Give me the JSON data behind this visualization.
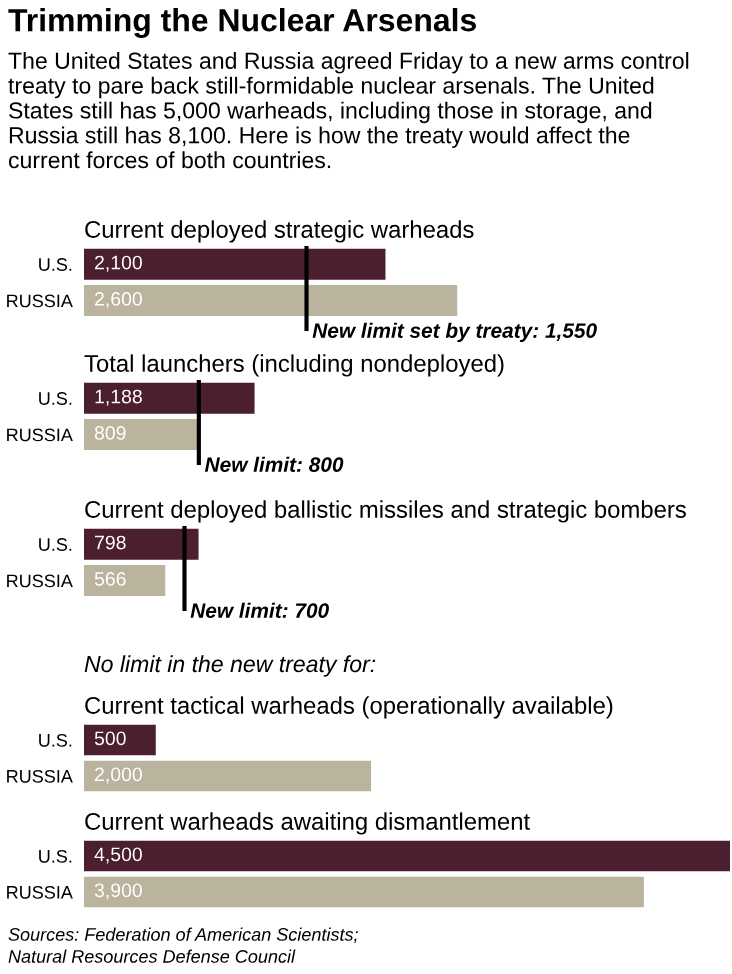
{
  "chart_data": [
    {
      "type": "other",
      "title": "Trimming the Nuclear Arsenals",
      "subtitle": "The United States and Russia agreed Friday to a new arms control\ntreaty to pare back still-formidable nuclear arsenals. The United\nStates still has 5,000 warheads, including those in storage, and\nRussia still has 8,100. Here is how the treaty would affect the\ncurrent forces of both countries."
    },
    {
      "type": "bar",
      "orientation": "horizontal",
      "title": "Current deployed strategic warheads",
      "categories": [
        "U.S.",
        "RUSSIA"
      ],
      "values": [
        2100,
        2600
      ],
      "value_labels": [
        "2,100",
        "2,600"
      ],
      "colors": [
        "#4b1f30",
        "#bab39d"
      ],
      "tick_labels": "y",
      "ref_lines": [
        {
          "axis": "x",
          "value": 1550,
          "label": "New limit set by treaty: 1,550"
        }
      ]
    },
    {
      "type": "bar",
      "orientation": "horizontal",
      "title": "Total launchers (including nondeployed)",
      "categories": [
        "U.S.",
        "RUSSIA"
      ],
      "values": [
        1188,
        809
      ],
      "value_labels": [
        "1,188",
        "809"
      ],
      "colors": [
        "#4b1f30",
        "#bab39d"
      ],
      "tick_labels": "y",
      "ref_lines": [
        {
          "axis": "x",
          "value": 800,
          "label": "New limit: 800"
        }
      ]
    },
    {
      "type": "bar",
      "orientation": "horizontal",
      "title": "Current deployed ballistic missiles and strategic bombers",
      "categories": [
        "U.S.",
        "RUSSIA"
      ],
      "values": [
        798,
        566
      ],
      "value_labels": [
        "798",
        "566"
      ],
      "colors": [
        "#4b1f30",
        "#bab39d"
      ],
      "tick_labels": "y",
      "ref_lines": [
        {
          "axis": "x",
          "value": 700,
          "label": "New limit: 700"
        }
      ]
    },
    {
      "type": "bar",
      "orientation": "horizontal",
      "title": "Current tactical warheads (operationally available)",
      "categories": [
        "U.S.",
        "RUSSIA"
      ],
      "values": [
        500,
        2000
      ],
      "value_labels": [
        "500",
        "2,000"
      ],
      "colors": [
        "#4b1f30",
        "#bab39d"
      ],
      "tick_labels": "y",
      "annotations": [
        "No limit in the new treaty for:"
      ]
    },
    {
      "type": "bar",
      "orientation": "horizontal",
      "title": "Current warheads awaiting dismantlement",
      "categories": [
        "U.S.",
        "RUSSIA"
      ],
      "values": [
        4500,
        3900
      ],
      "value_labels": [
        "4,500",
        "3,900"
      ],
      "colors": [
        "#4b1f30",
        "#bab39d"
      ],
      "tick_labels": "y",
      "annotations": [
        "Sources: Federation of American Scientists;",
        "Natural Resources Defense Council"
      ]
    }
  ]
}
